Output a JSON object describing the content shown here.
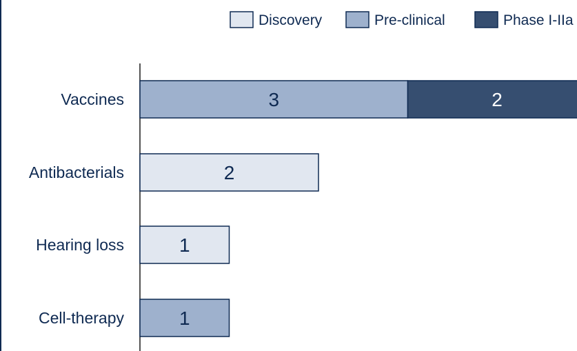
{
  "chart_data": {
    "type": "bar",
    "orientation": "horizontal",
    "stacked": true,
    "categories": [
      "Vaccines",
      "Antibacterials",
      "Hearing loss",
      "Cell-therapy"
    ],
    "series": [
      {
        "name": "Discovery",
        "color": "#e1e7f0",
        "values": [
          0,
          2,
          1,
          0
        ]
      },
      {
        "name": "Pre-clinical",
        "color": "#9eb1cd",
        "values": [
          3,
          0,
          0,
          1
        ]
      },
      {
        "name": "Phase I-IIa",
        "color": "#364e70",
        "values": [
          2,
          0,
          0,
          0
        ]
      }
    ],
    "value_labels": true,
    "xlim": [
      0,
      5
    ],
    "legend_position": "top-right",
    "grid": false,
    "colors": {
      "text": "#0f2a52",
      "border": "#0f2a52",
      "axis": "#1a1a1a"
    }
  }
}
